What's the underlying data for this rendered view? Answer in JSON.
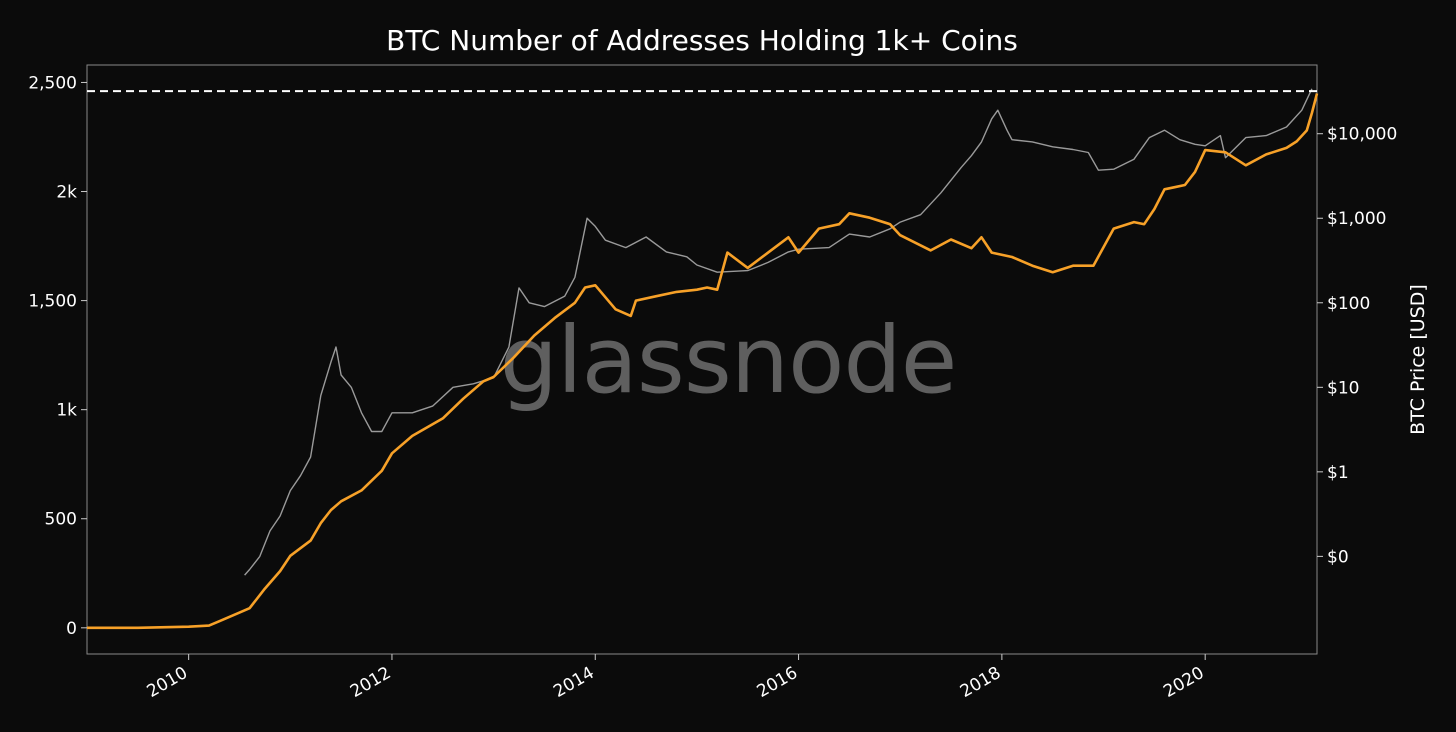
{
  "chart_data": {
    "type": "line",
    "title": "BTC Number of Addresses Holding 1k+ Coins",
    "watermark": "glassnode",
    "x_ticks": [
      "2010",
      "2012",
      "2014",
      "2016",
      "2018",
      "2020"
    ],
    "xlim": [
      2009.0,
      2021.1
    ],
    "y_left": {
      "ylim": [
        -120,
        2580
      ],
      "ticks": [
        0,
        500,
        1000,
        1500,
        2000,
        2500
      ],
      "tick_labels": [
        "0",
        "500",
        "1k",
        "1,500",
        "2k",
        "2,500"
      ]
    },
    "y_right": {
      "label": "BTC Price [USD]",
      "scale": "log",
      "ylim": [
        0.007,
        65000
      ],
      "ticks": [
        0.1,
        1,
        10,
        100,
        1000,
        10000
      ],
      "tick_labels": [
        "$0",
        "$1",
        "$10",
        "$100",
        "$1,000",
        "$10,000"
      ]
    },
    "reference_line": {
      "axis": "left",
      "value": 2460,
      "style": "dashed",
      "color": "#ffffff"
    },
    "series": [
      {
        "axis": "left",
        "color": "#f7a128",
        "x": [
          2009.0,
          2009.5,
          2010.0,
          2010.2,
          2010.3,
          2010.5,
          2010.6,
          2010.75,
          2010.9,
          2011.0,
          2011.2,
          2011.3,
          2011.4,
          2011.5,
          2011.7,
          2011.9,
          2012.0,
          2012.2,
          2012.5,
          2012.7,
          2012.9,
          2013.0,
          2013.2,
          2013.4,
          2013.6,
          2013.8,
          2013.9,
          2014.0,
          2014.2,
          2014.35,
          2014.4,
          2014.6,
          2014.8,
          2015.0,
          2015.1,
          2015.2,
          2015.3,
          2015.5,
          2015.7,
          2015.9,
          2016.0,
          2016.2,
          2016.4,
          2016.5,
          2016.7,
          2016.9,
          2017.0,
          2017.3,
          2017.5,
          2017.7,
          2017.8,
          2017.9,
          2018.1,
          2018.3,
          2018.5,
          2018.7,
          2018.9,
          2019.1,
          2019.3,
          2019.4,
          2019.5,
          2019.6,
          2019.7,
          2019.8,
          2019.9,
          2020.0,
          2020.2,
          2020.4,
          2020.6,
          2020.8,
          2020.9,
          2021.0,
          2021.05,
          2021.1
        ],
        "values": [
          0,
          0,
          5,
          10,
          30,
          70,
          90,
          180,
          260,
          330,
          400,
          480,
          540,
          580,
          630,
          720,
          800,
          880,
          960,
          1050,
          1130,
          1150,
          1240,
          1340,
          1420,
          1490,
          1560,
          1570,
          1460,
          1430,
          1500,
          1520,
          1540,
          1550,
          1560,
          1550,
          1720,
          1650,
          1720,
          1790,
          1720,
          1830,
          1850,
          1900,
          1880,
          1850,
          1800,
          1730,
          1780,
          1740,
          1790,
          1720,
          1700,
          1660,
          1630,
          1660,
          1660,
          1830,
          1860,
          1850,
          1920,
          2010,
          2020,
          2030,
          2090,
          2190,
          2180,
          2120,
          2170,
          2200,
          2230,
          2280,
          2360,
          2450
        ]
      },
      {
        "axis": "right",
        "color": "#9a9a9a",
        "x": [
          2010.55,
          2010.6,
          2010.7,
          2010.8,
          2010.9,
          2011.0,
          2011.1,
          2011.2,
          2011.3,
          2011.4,
          2011.45,
          2011.5,
          2011.6,
          2011.7,
          2011.8,
          2011.9,
          2012.0,
          2012.2,
          2012.4,
          2012.6,
          2012.8,
          2013.0,
          2013.15,
          2013.25,
          2013.35,
          2013.5,
          2013.7,
          2013.8,
          2013.92,
          2014.0,
          2014.1,
          2014.3,
          2014.5,
          2014.7,
          2014.9,
          2015.0,
          2015.2,
          2015.5,
          2015.7,
          2015.9,
          2016.0,
          2016.3,
          2016.5,
          2016.7,
          2016.9,
          2017.0,
          2017.2,
          2017.4,
          2017.6,
          2017.7,
          2017.8,
          2017.9,
          2017.96,
          2018.05,
          2018.1,
          2018.3,
          2018.5,
          2018.7,
          2018.85,
          2018.95,
          2019.1,
          2019.3,
          2019.45,
          2019.6,
          2019.75,
          2019.9,
          2020.0,
          2020.15,
          2020.2,
          2020.4,
          2020.6,
          2020.8,
          2020.95,
          2021.05
        ],
        "values": [
          0.06,
          0.07,
          0.1,
          0.2,
          0.3,
          0.6,
          0.9,
          1.5,
          8,
          20,
          30,
          14,
          10,
          5,
          3,
          3,
          5,
          5,
          6,
          10,
          11,
          13,
          30,
          150,
          100,
          90,
          120,
          200,
          1000,
          800,
          550,
          450,
          600,
          400,
          350,
          280,
          230,
          240,
          300,
          400,
          430,
          450,
          650,
          600,
          750,
          900,
          1100,
          2000,
          4000,
          5500,
          8000,
          15000,
          19000,
          11000,
          8500,
          8000,
          7000,
          6500,
          6000,
          3700,
          3800,
          5000,
          9000,
          11000,
          8500,
          7500,
          7200,
          9500,
          5200,
          9000,
          9500,
          12000,
          19000,
          34000
        ]
      }
    ]
  }
}
